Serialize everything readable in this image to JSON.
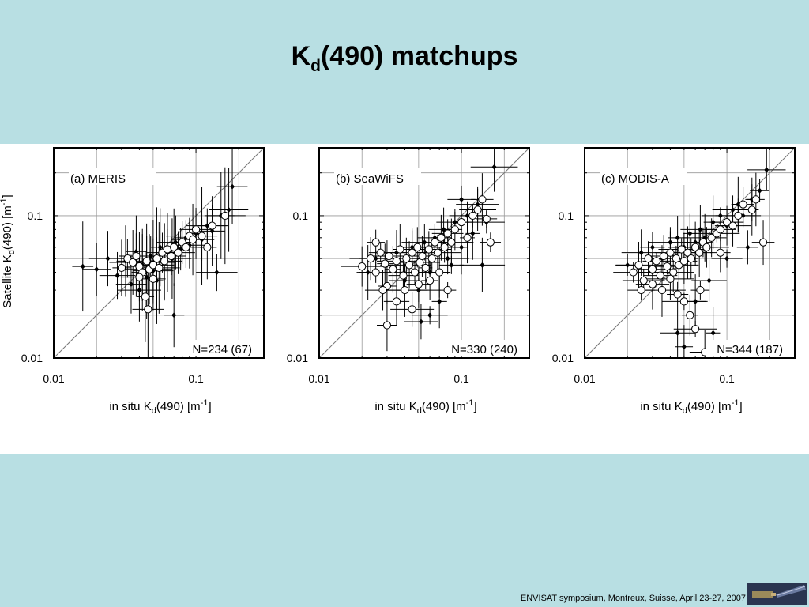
{
  "slide": {
    "title_main": "K",
    "title_sub": "d",
    "title_rest": "(490) matchups",
    "footer": "ENVISAT symposium, Montreux, Suisse, April 23-27, 2007"
  },
  "axes_text": {
    "ylabel_main": "Satellite K",
    "ylabel_sub": "d",
    "ylabel_rest": "(490) [m",
    "ylabel_sup": "-1",
    "ylabel_close": "]",
    "xlabel_main": "in situ K",
    "xlabel_sub": "d",
    "xlabel_rest": "(490) [m",
    "xlabel_sup": "-1",
    "xlabel_close": "]"
  },
  "chart_data": [
    {
      "type": "scatter",
      "panel_label": "(a) MERIS",
      "n_label": "N=234 (67)",
      "x_scale": "log",
      "y_scale": "log",
      "xlim": [
        0.01,
        0.3
      ],
      "ylim": [
        0.01,
        0.3
      ],
      "x_ticks": [
        "0.01",
        "0.1"
      ],
      "y_ticks": [
        "0.01",
        "0.1"
      ],
      "grid": true,
      "one_to_one_line": true,
      "series": [
        {
          "marker": "filled-diamond",
          "points": [
            [
              0.016,
              0.044
            ],
            [
              0.02,
              0.042
            ],
            [
              0.024,
              0.05
            ],
            [
              0.028,
              0.038
            ],
            [
              0.032,
              0.048
            ],
            [
              0.035,
              0.033
            ],
            [
              0.038,
              0.056
            ],
            [
              0.04,
              0.03
            ],
            [
              0.042,
              0.045
            ],
            [
              0.045,
              0.037
            ],
            [
              0.048,
              0.052
            ],
            [
              0.05,
              0.041
            ],
            [
              0.053,
              0.035
            ],
            [
              0.056,
              0.06
            ],
            [
              0.06,
              0.047
            ],
            [
              0.063,
              0.055
            ],
            [
              0.068,
              0.05
            ],
            [
              0.072,
              0.065
            ],
            [
              0.078,
              0.058
            ],
            [
              0.085,
              0.07
            ],
            [
              0.09,
              0.062
            ],
            [
              0.1,
              0.075
            ],
            [
              0.11,
              0.068
            ],
            [
              0.12,
              0.085
            ],
            [
              0.13,
              0.078
            ],
            [
              0.15,
              0.1
            ],
            [
              0.17,
              0.11
            ],
            [
              0.18,
              0.16
            ],
            [
              0.14,
              0.04
            ],
            [
              0.07,
              0.02
            ]
          ]
        },
        {
          "marker": "open-circle",
          "points": [
            [
              0.03,
              0.043
            ],
            [
              0.033,
              0.05
            ],
            [
              0.036,
              0.047
            ],
            [
              0.038,
              0.052
            ],
            [
              0.04,
              0.044
            ],
            [
              0.042,
              0.04
            ],
            [
              0.045,
              0.048
            ],
            [
              0.047,
              0.042
            ],
            [
              0.05,
              0.045
            ],
            [
              0.053,
              0.05
            ],
            [
              0.055,
              0.043
            ],
            [
              0.058,
              0.055
            ],
            [
              0.06,
              0.048
            ],
            [
              0.063,
              0.058
            ],
            [
              0.067,
              0.052
            ],
            [
              0.07,
              0.06
            ],
            [
              0.075,
              0.055
            ],
            [
              0.08,
              0.065
            ],
            [
              0.085,
              0.06
            ],
            [
              0.09,
              0.072
            ],
            [
              0.095,
              0.068
            ],
            [
              0.1,
              0.08
            ],
            [
              0.11,
              0.072
            ],
            [
              0.13,
              0.085
            ],
            [
              0.16,
              0.1
            ],
            [
              0.044,
              0.027
            ],
            [
              0.046,
              0.022
            ],
            [
              0.05,
              0.036
            ],
            [
              0.12,
              0.06
            ],
            [
              0.04,
              0.037
            ]
          ]
        }
      ]
    },
    {
      "type": "scatter",
      "panel_label": "(b) SeaWiFS",
      "n_label": "N=330 (240)",
      "x_scale": "log",
      "y_scale": "log",
      "xlim": [
        0.01,
        0.3
      ],
      "ylim": [
        0.01,
        0.3
      ],
      "x_ticks": [
        "0.01",
        "0.1"
      ],
      "y_ticks": [
        "0.01",
        "0.1"
      ],
      "grid": true,
      "one_to_one_line": true,
      "series": [
        {
          "marker": "filled-diamond",
          "points": [
            [
              0.022,
              0.04
            ],
            [
              0.025,
              0.05
            ],
            [
              0.03,
              0.045
            ],
            [
              0.035,
              0.055
            ],
            [
              0.04,
              0.035
            ],
            [
              0.045,
              0.06
            ],
            [
              0.05,
              0.03
            ],
            [
              0.055,
              0.065
            ],
            [
              0.06,
              0.04
            ],
            [
              0.065,
              0.07
            ],
            [
              0.07,
              0.025
            ],
            [
              0.075,
              0.08
            ],
            [
              0.08,
              0.05
            ],
            [
              0.09,
              0.09
            ],
            [
              0.1,
              0.06
            ],
            [
              0.11,
              0.1
            ],
            [
              0.12,
              0.075
            ],
            [
              0.13,
              0.12
            ],
            [
              0.15,
              0.09
            ],
            [
              0.17,
              0.22
            ],
            [
              0.06,
              0.02
            ],
            [
              0.052,
              0.018
            ],
            [
              0.085,
              0.045
            ],
            [
              0.14,
              0.045
            ],
            [
              0.1,
              0.13
            ]
          ]
        },
        {
          "marker": "open-circle",
          "points": [
            [
              0.02,
              0.044
            ],
            [
              0.023,
              0.05
            ],
            [
              0.025,
              0.04
            ],
            [
              0.027,
              0.055
            ],
            [
              0.029,
              0.046
            ],
            [
              0.031,
              0.052
            ],
            [
              0.033,
              0.042
            ],
            [
              0.035,
              0.048
            ],
            [
              0.037,
              0.058
            ],
            [
              0.039,
              0.038
            ],
            [
              0.041,
              0.05
            ],
            [
              0.043,
              0.045
            ],
            [
              0.045,
              0.055
            ],
            [
              0.047,
              0.04
            ],
            [
              0.049,
              0.06
            ],
            [
              0.051,
              0.047
            ],
            [
              0.053,
              0.052
            ],
            [
              0.056,
              0.043
            ],
            [
              0.059,
              0.058
            ],
            [
              0.062,
              0.05
            ],
            [
              0.065,
              0.065
            ],
            [
              0.068,
              0.055
            ],
            [
              0.072,
              0.07
            ],
            [
              0.076,
              0.06
            ],
            [
              0.08,
              0.075
            ],
            [
              0.085,
              0.065
            ],
            [
              0.09,
              0.08
            ],
            [
              0.1,
              0.09
            ],
            [
              0.11,
              0.07
            ],
            [
              0.12,
              0.1
            ],
            [
              0.13,
              0.11
            ],
            [
              0.14,
              0.13
            ],
            [
              0.15,
              0.095
            ],
            [
              0.16,
              0.065
            ],
            [
              0.03,
              0.032
            ],
            [
              0.035,
              0.025
            ],
            [
              0.04,
              0.03
            ],
            [
              0.045,
              0.022
            ],
            [
              0.05,
              0.033
            ],
            [
              0.03,
              0.017
            ],
            [
              0.06,
              0.035
            ],
            [
              0.07,
              0.04
            ],
            [
              0.08,
              0.03
            ],
            [
              0.025,
              0.065
            ],
            [
              0.028,
              0.03
            ]
          ]
        }
      ]
    },
    {
      "type": "scatter",
      "panel_label": "(c) MODIS-A",
      "n_label": "N=344 (187)",
      "x_scale": "log",
      "y_scale": "log",
      "xlim": [
        0.01,
        0.3
      ],
      "ylim": [
        0.01,
        0.3
      ],
      "x_ticks": [
        "0.01",
        "0.1"
      ],
      "y_ticks": [
        "0.01",
        "0.1"
      ],
      "grid": true,
      "one_to_one_line": true,
      "series": [
        {
          "marker": "filled-diamond",
          "points": [
            [
              0.02,
              0.045
            ],
            [
              0.025,
              0.055
            ],
            [
              0.03,
              0.06
            ],
            [
              0.035,
              0.05
            ],
            [
              0.04,
              0.065
            ],
            [
              0.045,
              0.07
            ],
            [
              0.05,
              0.06
            ],
            [
              0.055,
              0.075
            ],
            [
              0.06,
              0.065
            ],
            [
              0.065,
              0.08
            ],
            [
              0.07,
              0.07
            ],
            [
              0.08,
              0.09
            ],
            [
              0.09,
              0.1
            ],
            [
              0.1,
              0.085
            ],
            [
              0.11,
              0.11
            ],
            [
              0.12,
              0.12
            ],
            [
              0.13,
              0.1
            ],
            [
              0.15,
              0.13
            ],
            [
              0.17,
              0.15
            ],
            [
              0.19,
              0.21
            ],
            [
              0.045,
              0.015
            ],
            [
              0.05,
              0.012
            ],
            [
              0.06,
              0.025
            ],
            [
              0.08,
              0.015
            ],
            [
              0.1,
              0.05
            ],
            [
              0.14,
              0.06
            ],
            [
              0.03,
              0.04
            ],
            [
              0.075,
              0.035
            ]
          ]
        },
        {
          "marker": "open-circle",
          "points": [
            [
              0.022,
              0.04
            ],
            [
              0.024,
              0.045
            ],
            [
              0.026,
              0.035
            ],
            [
              0.028,
              0.05
            ],
            [
              0.03,
              0.042
            ],
            [
              0.032,
              0.048
            ],
            [
              0.034,
              0.038
            ],
            [
              0.036,
              0.052
            ],
            [
              0.038,
              0.044
            ],
            [
              0.04,
              0.055
            ],
            [
              0.042,
              0.04
            ],
            [
              0.044,
              0.05
            ],
            [
              0.046,
              0.045
            ],
            [
              0.048,
              0.058
            ],
            [
              0.05,
              0.048
            ],
            [
              0.053,
              0.055
            ],
            [
              0.056,
              0.05
            ],
            [
              0.06,
              0.06
            ],
            [
              0.064,
              0.055
            ],
            [
              0.068,
              0.065
            ],
            [
              0.072,
              0.06
            ],
            [
              0.078,
              0.07
            ],
            [
              0.085,
              0.075
            ],
            [
              0.09,
              0.08
            ],
            [
              0.1,
              0.09
            ],
            [
              0.11,
              0.085
            ],
            [
              0.12,
              0.1
            ],
            [
              0.13,
              0.12
            ],
            [
              0.15,
              0.11
            ],
            [
              0.16,
              0.13
            ],
            [
              0.18,
              0.065
            ],
            [
              0.03,
              0.033
            ],
            [
              0.035,
              0.03
            ],
            [
              0.04,
              0.036
            ],
            [
              0.045,
              0.028
            ],
            [
              0.05,
              0.025
            ],
            [
              0.055,
              0.02
            ],
            [
              0.06,
              0.016
            ],
            [
              0.07,
              0.011
            ],
            [
              0.065,
              0.03
            ],
            [
              0.025,
              0.03
            ],
            [
              0.09,
              0.055
            ]
          ]
        }
      ]
    }
  ]
}
